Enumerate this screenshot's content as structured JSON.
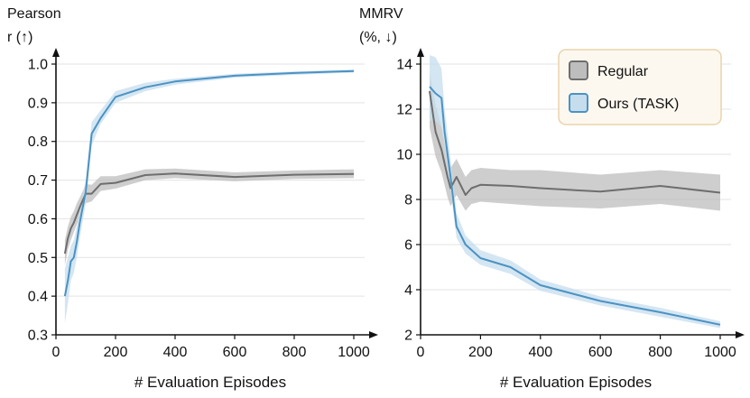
{
  "chart_data": [
    {
      "type": "line",
      "ylabel_line1": "Pearson",
      "ylabel_line2": "r (↑)",
      "xlabel": "# Evaluation Episodes",
      "xlim": [
        0,
        1000
      ],
      "ylim": [
        0.3,
        1.0
      ],
      "xticks": [
        0,
        200,
        400,
        600,
        800,
        1000
      ],
      "xtick_labels": [
        "0",
        "200",
        "400",
        "600",
        "800",
        "1000"
      ],
      "yticks": [
        0.3,
        0.4,
        0.5,
        0.6,
        0.7,
        0.8,
        0.9,
        1.0
      ],
      "ytick_labels": [
        "0.3",
        "0.4",
        "0.5",
        "0.6",
        "0.7",
        "0.8",
        "0.9",
        "1.0"
      ],
      "grid": "horizontal",
      "series": [
        {
          "name": "Regular",
          "color": "#6e6e6e",
          "band_color": "#bdbdbd",
          "x": [
            30,
            40,
            50,
            60,
            70,
            80,
            90,
            100,
            120,
            150,
            200,
            300,
            400,
            600,
            800,
            1000
          ],
          "y": [
            0.51,
            0.55,
            0.575,
            0.59,
            0.61,
            0.63,
            0.648,
            0.665,
            0.665,
            0.69,
            0.693,
            0.713,
            0.717,
            0.708,
            0.714,
            0.716
          ],
          "lower": [
            0.48,
            0.52,
            0.545,
            0.565,
            0.585,
            0.605,
            0.625,
            0.64,
            0.645,
            0.672,
            0.678,
            0.7,
            0.705,
            0.697,
            0.703,
            0.705
          ],
          "upper": [
            0.545,
            0.58,
            0.605,
            0.62,
            0.64,
            0.655,
            0.672,
            0.69,
            0.688,
            0.71,
            0.71,
            0.728,
            0.73,
            0.72,
            0.725,
            0.728
          ]
        },
        {
          "name": "Ours (TASK)",
          "color": "#4b92c3",
          "band_color": "#c6dded",
          "x": [
            30,
            40,
            50,
            60,
            70,
            80,
            90,
            100,
            120,
            150,
            200,
            300,
            400,
            600,
            800,
            1000
          ],
          "y": [
            0.4,
            0.44,
            0.49,
            0.5,
            0.54,
            0.59,
            0.63,
            0.67,
            0.82,
            0.86,
            0.915,
            0.94,
            0.955,
            0.97,
            0.977,
            0.982
          ],
          "lower": [
            0.33,
            0.38,
            0.44,
            0.46,
            0.5,
            0.55,
            0.595,
            0.64,
            0.79,
            0.845,
            0.9,
            0.93,
            0.947,
            0.965,
            0.972,
            0.978
          ],
          "upper": [
            0.47,
            0.5,
            0.53,
            0.545,
            0.58,
            0.625,
            0.665,
            0.7,
            0.85,
            0.88,
            0.93,
            0.952,
            0.962,
            0.975,
            0.981,
            0.986
          ]
        }
      ]
    },
    {
      "type": "line",
      "ylabel_line1": "MMRV",
      "ylabel_line2": "(%, ↓)",
      "xlabel": "# Evaluation Episodes",
      "xlim": [
        0,
        1000
      ],
      "ylim": [
        2,
        14
      ],
      "xticks": [
        0,
        200,
        400,
        600,
        800,
        1000
      ],
      "xtick_labels": [
        "0",
        "200",
        "400",
        "600",
        "800",
        "1000"
      ],
      "yticks": [
        2,
        4,
        6,
        8,
        10,
        12,
        14
      ],
      "ytick_labels": [
        "2",
        "4",
        "6",
        "8",
        "10",
        "12",
        "14"
      ],
      "grid": "horizontal",
      "legend_position": "top-right",
      "series": [
        {
          "name": "Regular",
          "color": "#6e6e6e",
          "band_color": "#bdbdbd",
          "x": [
            30,
            50,
            70,
            90,
            100,
            120,
            150,
            170,
            200,
            300,
            400,
            600,
            800,
            1000
          ],
          "y": [
            12.8,
            11.0,
            10.2,
            9.0,
            8.5,
            9.0,
            8.2,
            8.5,
            8.65,
            8.6,
            8.5,
            8.35,
            8.6,
            8.3
          ],
          "lower": [
            11.2,
            9.9,
            9.2,
            8.1,
            7.7,
            8.2,
            7.5,
            7.8,
            7.9,
            7.8,
            7.7,
            7.6,
            7.8,
            7.5
          ],
          "upper": [
            13.6,
            12.2,
            11.2,
            9.9,
            9.4,
            9.8,
            9.0,
            9.3,
            9.4,
            9.3,
            9.3,
            9.1,
            9.3,
            9.1
          ]
        },
        {
          "name": "Ours (TASK)",
          "color": "#4b92c3",
          "band_color": "#c6dded",
          "x": [
            30,
            50,
            70,
            80,
            100,
            120,
            150,
            200,
            300,
            400,
            600,
            800,
            1000
          ],
          "y": [
            13.0,
            12.7,
            12.5,
            11.0,
            9.0,
            6.8,
            6.0,
            5.4,
            5.0,
            4.2,
            3.5,
            3.0,
            2.45
          ],
          "lower": [
            11.5,
            11.5,
            11.2,
            10.2,
            8.4,
            6.3,
            5.6,
            5.1,
            4.7,
            3.95,
            3.3,
            2.8,
            2.3
          ],
          "upper": [
            14.4,
            14.3,
            13.8,
            12.0,
            9.8,
            7.4,
            6.4,
            5.75,
            5.3,
            4.45,
            3.7,
            3.2,
            2.6
          ]
        }
      ]
    }
  ],
  "legend": {
    "items": [
      {
        "label": "Regular",
        "fill": "#bdbdbd",
        "stroke": "#6e6e6e"
      },
      {
        "label": "Ours (TASK)",
        "fill": "#c6dded",
        "stroke": "#4b92c3"
      }
    ],
    "background": "#fdf8ef",
    "border": "#e9d3ab"
  }
}
